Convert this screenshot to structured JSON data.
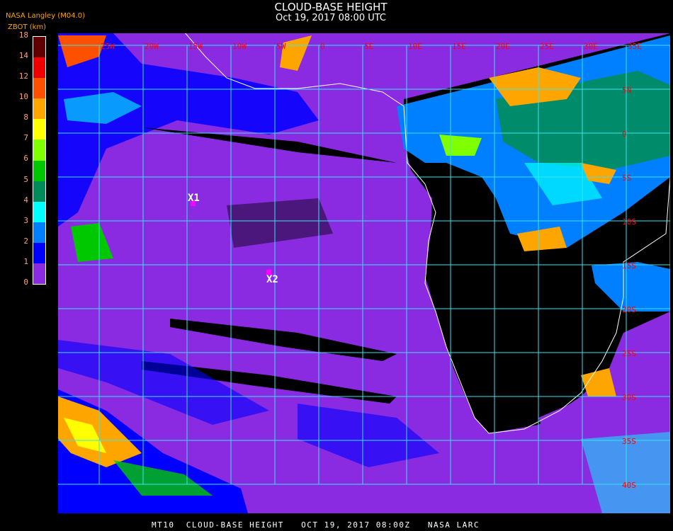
{
  "header": {
    "title": "CLOUD-BASE HEIGHT",
    "subtitle": "Oct 19, 2017 08:00 UTC"
  },
  "legend": {
    "source": "NASA Langley (M04.0)",
    "variable": "ZBOT (km)",
    "ticks": [
      "0",
      "1",
      "2",
      "3",
      "4",
      "5",
      "6",
      "7",
      "8",
      "10",
      "12",
      "14",
      "18"
    ],
    "colors": [
      "#8a2be2",
      "#0000ff",
      "#0080ff",
      "#00ffff",
      "#008c5a",
      "#00c800",
      "#80ff00",
      "#ffff00",
      "#ffa500",
      "#ff5000",
      "#ee0000",
      "#600000"
    ]
  },
  "map": {
    "background_color": "#8a2be2",
    "grid_color": "#33e6f0",
    "label_color": "#ff0000",
    "coastline_color": "#ffffff",
    "lon_labels": [
      "25W",
      "20W",
      "15W",
      "10W",
      "5W",
      "0",
      "5E",
      "10E",
      "15E",
      "20E",
      "25E",
      "30E",
      "35E"
    ],
    "lat_labels": [
      "5N",
      "0",
      "5S",
      "10S",
      "15S",
      "20S",
      "25S",
      "30S",
      "35S",
      "40S"
    ],
    "markers": [
      {
        "label": "X1",
        "color": "#ff00ff"
      },
      {
        "label": "X2",
        "color": "#ff00ff"
      }
    ]
  },
  "footer": {
    "caption": "MT10  CLOUD-BASE HEIGHT   OCT 19, 2017 08:00Z   NASA LARC"
  }
}
